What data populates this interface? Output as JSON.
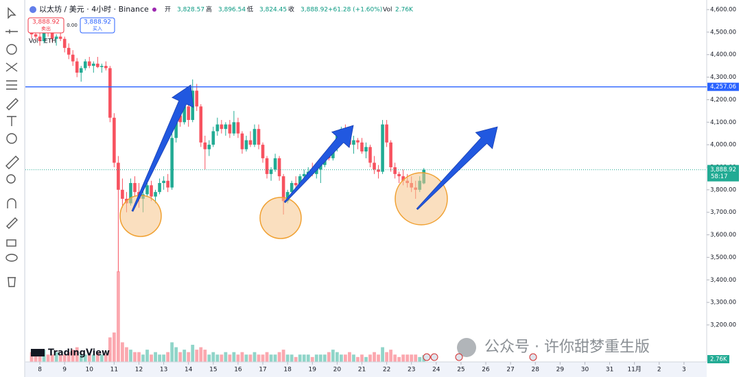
{
  "header": {
    "symbol": "以太坊 / 美元 · 4小时 · Binance",
    "ohlc": [
      {
        "key": "开",
        "value": "3,828.57"
      },
      {
        "key": "高",
        "value": "3,896.54"
      },
      {
        "key": "低",
        "value": "3,824.45"
      },
      {
        "key": "收",
        "value": "3,888.92"
      }
    ],
    "change": "+61.28 (+1.60%)",
    "vol_key": "Vol",
    "vol_value": "2.76K",
    "sell_price": "3,888.92",
    "sell_label": "卖出",
    "buy_price": "3,888.92",
    "buy_label": "买入",
    "spread": "0.00",
    "vol_title": "Vol · ETH"
  },
  "chart_data": {
    "type": "candlestick",
    "x": [
      -2,
      -1,
      0,
      1,
      2,
      3,
      4,
      5,
      6,
      7,
      8,
      9,
      10,
      11,
      12,
      13,
      14,
      15,
      16,
      17,
      18,
      19,
      20,
      21,
      22,
      23,
      24,
      25,
      26,
      27,
      28,
      29,
      30,
      31,
      32,
      33,
      34,
      35,
      36,
      37,
      38,
      39,
      40,
      41,
      42,
      43,
      44,
      45,
      46,
      47,
      48,
      49,
      50,
      51,
      52,
      53,
      54,
      55,
      56,
      57,
      58,
      59,
      60,
      61,
      62,
      63,
      64,
      65,
      66,
      67,
      68,
      69,
      70,
      71,
      72,
      73,
      74,
      75,
      76,
      77,
      78,
      79,
      80,
      81,
      82,
      83,
      84,
      85,
      86,
      87,
      88,
      89,
      90,
      91,
      92,
      93
    ],
    "ohlc": [
      [
        4500,
        4530,
        4470,
        4490
      ],
      [
        4490,
        4510,
        4460,
        4480
      ],
      [
        4480,
        4500,
        4440,
        4460
      ],
      [
        4460,
        4520,
        4450,
        4510
      ],
      [
        4510,
        4525,
        4480,
        4495
      ],
      [
        4495,
        4510,
        4455,
        4470
      ],
      [
        4470,
        4490,
        4440,
        4480
      ],
      [
        4480,
        4500,
        4460,
        4470
      ],
      [
        4470,
        4480,
        4410,
        4430
      ],
      [
        4430,
        4450,
        4380,
        4400
      ],
      [
        4400,
        4420,
        4350,
        4370
      ],
      [
        4370,
        4385,
        4300,
        4320
      ],
      [
        4320,
        4350,
        4280,
        4340
      ],
      [
        4340,
        4380,
        4330,
        4370
      ],
      [
        4370,
        4390,
        4340,
        4350
      ],
      [
        4350,
        4370,
        4320,
        4360
      ],
      [
        4360,
        4390,
        4340,
        4345
      ],
      [
        4345,
        4360,
        4320,
        4350
      ],
      [
        4350,
        4370,
        4330,
        4340
      ],
      [
        4340,
        4350,
        4100,
        4120
      ],
      [
        4120,
        4140,
        3900,
        3920
      ],
      [
        3920,
        3950,
        3435,
        3800
      ],
      [
        3800,
        3850,
        3720,
        3760
      ],
      [
        3760,
        3790,
        3700,
        3740
      ],
      [
        3740,
        3850,
        3730,
        3830
      ],
      [
        3830,
        3860,
        3770,
        3790
      ],
      [
        3790,
        3830,
        3720,
        3760
      ],
      [
        3760,
        3800,
        3700,
        3780
      ],
      [
        3780,
        3840,
        3770,
        3820
      ],
      [
        3820,
        3840,
        3750,
        3770
      ],
      [
        3770,
        3800,
        3740,
        3790
      ],
      [
        3790,
        3850,
        3780,
        3830
      ],
      [
        3830,
        3860,
        3800,
        3840
      ],
      [
        3840,
        3870,
        3790,
        3810
      ],
      [
        3810,
        4050,
        3800,
        4030
      ],
      [
        4030,
        4150,
        4010,
        4130
      ],
      [
        4130,
        4180,
        4080,
        4100
      ],
      [
        4100,
        4200,
        4090,
        4170
      ],
      [
        4170,
        4230,
        4080,
        4110
      ],
      [
        4110,
        4290,
        4100,
        4240
      ],
      [
        4240,
        4270,
        4150,
        4170
      ],
      [
        4170,
        4180,
        3990,
        4010
      ],
      [
        4010,
        4040,
        3890,
        3980
      ],
      [
        3980,
        4020,
        3950,
        4000
      ],
      [
        4000,
        4080,
        3990,
        4060
      ],
      [
        4060,
        4120,
        4040,
        4090
      ],
      [
        4090,
        4110,
        4050,
        4070
      ],
      [
        4070,
        4100,
        4040,
        4090
      ],
      [
        4090,
        4110,
        4030,
        4050
      ],
      [
        4050,
        4150,
        4040,
        4100
      ],
      [
        4100,
        4120,
        4030,
        4050
      ],
      [
        4050,
        4060,
        3960,
        3980
      ],
      [
        3980,
        4040,
        3970,
        4020
      ],
      [
        4020,
        4060,
        3990,
        4000
      ],
      [
        4000,
        4090,
        3990,
        4070
      ],
      [
        4070,
        4090,
        3980,
        4000
      ],
      [
        4000,
        4010,
        3920,
        3940
      ],
      [
        3940,
        3950,
        3850,
        3870
      ],
      [
        3870,
        3900,
        3840,
        3890
      ],
      [
        3890,
        3960,
        3880,
        3940
      ],
      [
        3940,
        3950,
        3840,
        3860
      ],
      [
        3860,
        3870,
        3690,
        3750
      ],
      [
        3750,
        3800,
        3740,
        3790
      ],
      [
        3790,
        3840,
        3780,
        3830
      ],
      [
        3830,
        3860,
        3800,
        3820
      ],
      [
        3820,
        3870,
        3810,
        3860
      ],
      [
        3860,
        3890,
        3840,
        3870
      ],
      [
        3870,
        3900,
        3850,
        3880
      ],
      [
        3880,
        3920,
        3860,
        3870
      ],
      [
        3870,
        3900,
        3850,
        3890
      ],
      [
        3890,
        3920,
        3830,
        3910
      ],
      [
        3910,
        3960,
        3900,
        3950
      ],
      [
        3950,
        3990,
        3930,
        3940
      ],
      [
        3940,
        4010,
        3930,
        3990
      ],
      [
        3990,
        4060,
        3970,
        4040
      ],
      [
        4040,
        4080,
        4020,
        4070
      ],
      [
        4070,
        4090,
        4030,
        4050
      ],
      [
        4050,
        4060,
        3990,
        4000
      ],
      [
        4000,
        4040,
        3960,
        4020
      ],
      [
        4020,
        4030,
        3980,
        4010
      ],
      [
        4010,
        4030,
        3960,
        3970
      ],
      [
        3970,
        4010,
        3940,
        3990
      ],
      [
        3990,
        4000,
        3900,
        3920
      ],
      [
        3920,
        3950,
        3870,
        3890
      ],
      [
        3890,
        3910,
        3850,
        3880
      ],
      [
        3880,
        4110,
        3870,
        4090
      ],
      [
        4090,
        4110,
        3990,
        4010
      ],
      [
        4010,
        4020,
        3880,
        3900
      ],
      [
        3900,
        3920,
        3850,
        3870
      ],
      [
        3870,
        3880,
        3830,
        3860
      ],
      [
        3860,
        3890,
        3820,
        3840
      ],
      [
        3840,
        3870,
        3810,
        3830
      ],
      [
        3830,
        3860,
        3790,
        3810
      ],
      [
        3810,
        3840,
        3760,
        3800
      ],
      [
        3800,
        3860,
        3790,
        3840
      ],
      [
        3828.57,
        3896.54,
        3824.45,
        3888.92
      ]
    ],
    "volume": [
      4,
      3,
      3,
      5,
      3,
      3,
      4,
      3,
      3,
      4,
      5,
      6,
      3,
      3,
      3,
      3,
      4,
      3,
      3,
      10,
      12,
      37,
      8,
      6,
      5,
      4,
      4,
      3,
      5,
      3,
      4,
      3,
      3,
      4,
      8,
      6,
      4,
      5,
      4,
      7,
      5,
      6,
      5,
      3,
      4,
      3,
      3,
      4,
      3,
      4,
      3,
      4,
      3,
      3,
      4,
      3,
      3,
      4,
      3,
      3,
      4,
      5,
      3,
      3,
      2,
      3,
      3,
      3,
      2,
      3,
      3,
      3,
      4,
      5,
      4,
      3,
      3,
      4,
      3,
      2,
      3,
      2,
      3,
      4,
      3,
      6,
      4,
      5,
      3,
      2,
      3,
      3,
      3,
      3,
      2,
      2.76
    ],
    "volume_label": "2.76K",
    "volume_lim": [
      0,
      40
    ],
    "up_color": "#22ab94",
    "down_color": "#f7525f",
    "xlim": [
      -3.5,
      161.5
    ],
    "xticks": [
      {
        "value": 0,
        "label": "8"
      },
      {
        "value": 6,
        "label": "9"
      },
      {
        "value": 12,
        "label": "10"
      },
      {
        "value": 18,
        "label": "11"
      },
      {
        "value": 24,
        "label": "12"
      },
      {
        "value": 30,
        "label": "13"
      },
      {
        "value": 36,
        "label": "14"
      },
      {
        "value": 42,
        "label": "15"
      },
      {
        "value": 48,
        "label": "16"
      },
      {
        "value": 54,
        "label": "17"
      },
      {
        "value": 60,
        "label": "18"
      },
      {
        "value": 66,
        "label": "19"
      },
      {
        "value": 72,
        "label": "20"
      },
      {
        "value": 78,
        "label": "21"
      },
      {
        "value": 84,
        "label": "22"
      },
      {
        "value": 90,
        "label": "23"
      },
      {
        "value": 96,
        "label": "24"
      },
      {
        "value": 102,
        "label": "25"
      },
      {
        "value": 108,
        "label": "26"
      },
      {
        "value": 114,
        "label": "27"
      },
      {
        "value": 120,
        "label": "28"
      },
      {
        "value": 126,
        "label": "29"
      },
      {
        "value": 132,
        "label": "30"
      },
      {
        "value": 138,
        "label": "31"
      },
      {
        "value": 144,
        "label": "11月"
      },
      {
        "value": 150,
        "label": "2"
      },
      {
        "value": 156,
        "label": "3"
      }
    ],
    "ylim": [
      3200,
      4600
    ],
    "yticks": [
      {
        "value": 3200,
        "label": "3,200.00"
      },
      {
        "value": 3300,
        "label": "3,300.00"
      },
      {
        "value": 3400,
        "label": "3,400.00"
      },
      {
        "value": 3500,
        "label": "3,500.00"
      },
      {
        "value": 3600,
        "label": "3,600.00"
      },
      {
        "value": 3700,
        "label": "3,700.00"
      },
      {
        "value": 3800,
        "label": "3,800.00"
      },
      {
        "value": 3900,
        "label": "3,900.00"
      },
      {
        "value": 4000,
        "label": "4,000.00"
      },
      {
        "value": 4100,
        "label": "4,100.00"
      },
      {
        "value": 4200,
        "label": "4,200.00"
      },
      {
        "value": 4300,
        "label": "4,300.00"
      },
      {
        "value": 4400,
        "label": "4,400.00"
      },
      {
        "value": 4500,
        "label": "4,500.00"
      },
      {
        "value": 4600,
        "label": "4,600.00"
      }
    ],
    "hline": {
      "value": 4257.06,
      "label": "4,257.06",
      "color": "#2962ff"
    },
    "last_price": {
      "value": 3888.92,
      "label": "3,888.92",
      "countdown": "58:17"
    },
    "logo": "TradingView",
    "watermark": "公众号 · 许你甜梦重生版"
  }
}
